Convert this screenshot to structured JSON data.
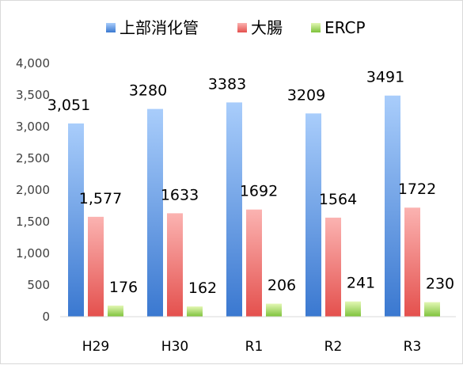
{
  "chart_data": {
    "type": "bar",
    "categories": [
      "H29",
      "H30",
      "R1",
      "R2",
      "R3"
    ],
    "series": [
      {
        "name": "上部消化管",
        "values": [
          3051,
          3280,
          3383,
          3209,
          3491
        ],
        "labels": [
          "3,051",
          "3280",
          "3383",
          "3209",
          "3491"
        ],
        "color": "#5b9bd5"
      },
      {
        "name": "大腸",
        "values": [
          1577,
          1633,
          1692,
          1564,
          1722
        ],
        "labels": [
          "1,577",
          "1633",
          "1692",
          "1564",
          "1722"
        ],
        "color": "#f4716e"
      },
      {
        "name": "ERCP",
        "values": [
          176,
          162,
          206,
          241,
          230
        ],
        "labels": [
          "176",
          "162",
          "206",
          "241",
          "230"
        ],
        "color": "#92d050"
      }
    ],
    "yticks": [
      "0",
      "500",
      "1,000",
      "1,500",
      "2,000",
      "2,500",
      "3,000",
      "3,500",
      "4,000"
    ],
    "ylim": [
      0,
      4000
    ],
    "grid": false,
    "legend": "top"
  }
}
